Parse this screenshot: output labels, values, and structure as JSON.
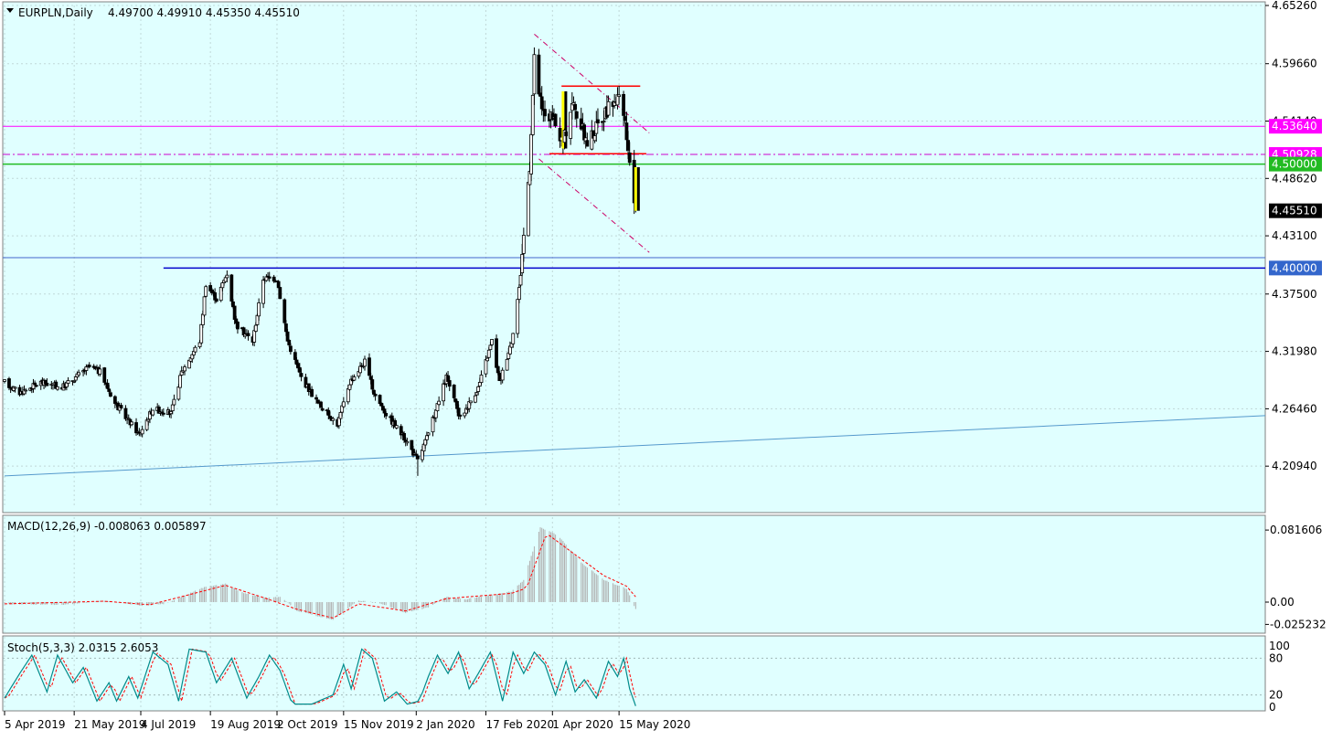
{
  "header": {
    "symbol_label": "EURPLN,Daily",
    "ohlc_label": "4.49700 4.49910 4.45350 4.45510"
  },
  "colors": {
    "background": "#E0FFFF",
    "bull_candle": "#FFFFFF",
    "bear_candle": "#000000",
    "highlight_candle": "#FFFF00",
    "resistance": "#FF0000",
    "support_green": "#22BB22",
    "support_blue": "#0000CC",
    "magenta": "#FF00FF",
    "trendline": "#5599CC",
    "channel": "#CC0066",
    "signal": "#FF0000",
    "stoch_main": "#008B8B"
  },
  "chart_data": {
    "type": "candlestick",
    "symbol": "EURPLN",
    "timeframe": "Daily",
    "last_bar": {
      "open": 4.497,
      "high": 4.4991,
      "low": 4.4535,
      "close": 4.4551
    },
    "ylim": [
      4.17,
      4.6526
    ],
    "y_ticks": [
      "4.65260",
      "4.59660",
      "4.54140",
      "4.48620",
      "4.43100",
      "4.37500",
      "4.31980",
      "4.26460",
      "4.20940"
    ],
    "x_labels": [
      "5 Apr 2019",
      "21 May 2019",
      "4 Jul 2019",
      "19 Aug 2019",
      "2 Oct 2019",
      "15 Nov 2019",
      "2 Jan 2020",
      "17 Feb 2020",
      "1 Apr 2020",
      "15 May 2020"
    ],
    "price_path_waypoints": [
      [
        "5 Apr 2019",
        4.29
      ],
      [
        "15 Apr 2019",
        4.28
      ],
      [
        "29 Apr 2019",
        4.29
      ],
      [
        "13 May 2019",
        4.285
      ],
      [
        "31 May 2019",
        4.305
      ],
      [
        "7 Jun 2019",
        4.3
      ],
      [
        "17 Jun 2019",
        4.27
      ],
      [
        "3 Jul 2019",
        4.24
      ],
      [
        "12 Jul 2019",
        4.265
      ],
      [
        "24 Jul 2019",
        4.26
      ],
      [
        "31 Jul 2019",
        4.3
      ],
      [
        "12 Aug 2019",
        4.33
      ],
      [
        "16 Aug 2019",
        4.385
      ],
      [
        "23 Aug 2019",
        4.37
      ],
      [
        "30 Aug 2019",
        4.395
      ],
      [
        "5 Sep 2019",
        4.345
      ],
      [
        "16 Sep 2019",
        4.33
      ],
      [
        "23 Sep 2019",
        4.39
      ],
      [
        "2 Oct 2019",
        4.39
      ],
      [
        "9 Oct 2019",
        4.33
      ],
      [
        "18 Oct 2019",
        4.295
      ],
      [
        "29 Oct 2019",
        4.27
      ],
      [
        "11 Nov 2019",
        4.25
      ],
      [
        "19 Nov 2019",
        4.29
      ],
      [
        "29 Nov 2019",
        4.31
      ],
      [
        "5 Dec 2019",
        4.28
      ],
      [
        "13 Dec 2019",
        4.26
      ],
      [
        "26 Dec 2019",
        4.235
      ],
      [
        "3 Jan 2020",
        4.215
      ],
      [
        "10 Jan 2020",
        4.24
      ],
      [
        "22 Jan 2020",
        4.295
      ],
      [
        "31 Jan 2020",
        4.255
      ],
      [
        "12 Feb 2020",
        4.285
      ],
      [
        "21 Feb 2020",
        4.33
      ],
      [
        "26 Feb 2020",
        4.29
      ],
      [
        "5 Mar 2020",
        4.33
      ],
      [
        "10 Mar 2020",
        4.38
      ],
      [
        "17 Mar 2020",
        4.5
      ],
      [
        "20 Mar 2020",
        4.6
      ],
      [
        "25 Mar 2020",
        4.55
      ],
      [
        "31 Mar 2020",
        4.545
      ],
      [
        "8 Apr 2020",
        4.52
      ],
      [
        "14 Apr 2020",
        4.56
      ],
      [
        "24 Apr 2020",
        4.52
      ],
      [
        "6 May 2020",
        4.55
      ],
      [
        "14 May 2020",
        4.565
      ],
      [
        "19 May 2020",
        4.54
      ],
      [
        "22 May 2020",
        4.495
      ],
      [
        "26 May 2020",
        4.4551
      ]
    ],
    "spike_low": {
      "date": "3 Jan 2020",
      "value": 4.2
    },
    "price_labels": [
      {
        "text": "4.53640",
        "value": 4.5364,
        "style": "magenta"
      },
      {
        "text": "4.50928",
        "value": 4.50928,
        "style": "magenta"
      },
      {
        "text": "4.50000",
        "value": 4.5,
        "style": "green"
      },
      {
        "text": "4.45510",
        "value": 4.4551,
        "style": "current"
      },
      {
        "text": "4.40000",
        "value": 4.4,
        "style": "blue"
      }
    ],
    "horizontal_lines": [
      {
        "name": "magenta-line",
        "value": 4.5364,
        "style": "solid",
        "color": "#FF00FF"
      },
      {
        "name": "magenta-dashdot-line",
        "value": 4.50928,
        "style": "dashdot",
        "color": "#CC00CC"
      },
      {
        "name": "green-line",
        "value": 4.5,
        "style": "solid",
        "color": "#22BB22"
      },
      {
        "name": "upper-blue-line",
        "value": 4.41,
        "style": "solid",
        "color": "#4466CC"
      },
      {
        "name": "blue-support-line",
        "value": 4.4,
        "style": "solid",
        "color": "#0000CC",
        "from": "19 Jul 2019"
      }
    ],
    "resistance_segments": [
      {
        "from": "7 Apr 2020",
        "to": "29 May 2020",
        "value": 4.575
      },
      {
        "from": "30 Mar 2020",
        "to": "2 Jun 2020",
        "value": 4.51
      }
    ],
    "trendline": {
      "from": [
        "5 Apr 2019",
        4.2
      ],
      "to": [
        "8 Jun 2020",
        4.258
      ]
    },
    "channel_lines": [
      {
        "from": [
          "20 Mar 2020",
          4.625
        ],
        "to": [
          "4 Jun 2020",
          4.53
        ]
      },
      {
        "from": [
          "23 Mar 2020",
          4.505
        ],
        "to": [
          "4 Jun 2020",
          4.415
        ]
      }
    ],
    "highlighted_candles": [
      {
        "date": "8 Apr 2020",
        "open": 4.515,
        "close": 4.57
      },
      {
        "date": "26 May 2020",
        "open": 4.497,
        "close": 4.4551
      }
    ]
  },
  "macd": {
    "label": "MACD(12,26,9) -0.008063 0.005897",
    "ylim": [
      -0.03,
      0.09
    ],
    "y_ticks": [
      "0.081606",
      "0.00",
      "-0.025232"
    ],
    "waypoints": [
      [
        "5 Apr 2019",
        -0.002
      ],
      [
        "15 May 2019",
        -0.003
      ],
      [
        "10 Jun 2019",
        0.002
      ],
      [
        "5 Jul 2019",
        -0.004
      ],
      [
        "20 Jul 2019",
        -0.002
      ],
      [
        "15 Aug 2019",
        0.017
      ],
      [
        "29 Aug 2019",
        0.021
      ],
      [
        "10 Sep 2019",
        0.01
      ],
      [
        "25 Sep 2019",
        0.005
      ],
      [
        "5 Oct 2019",
        0.006
      ],
      [
        "15 Oct 2019",
        -0.01
      ],
      [
        "8 Nov 2019",
        -0.02
      ],
      [
        "25 Nov 2019",
        0.002
      ],
      [
        "10 Dec 2019",
        -0.002
      ],
      [
        "26 Dec 2019",
        -0.012
      ],
      [
        "10 Jan 2020",
        -0.006
      ],
      [
        "22 Jan 2020",
        0.006
      ],
      [
        "3 Feb 2020",
        0.003
      ],
      [
        "20 Feb 2020",
        0.008
      ],
      [
        "5 Mar 2020",
        0.012
      ],
      [
        "13 Mar 2020",
        0.025
      ],
      [
        "24 Mar 2020",
        0.085
      ],
      [
        "5 Apr 2020",
        0.075
      ],
      [
        "20 Apr 2020",
        0.045
      ],
      [
        "5 May 2020",
        0.025
      ],
      [
        "20 May 2020",
        0.015
      ],
      [
        "26 May 2020",
        -0.008
      ]
    ],
    "signal_waypoints": [
      [
        "5 Apr 2019",
        -0.002
      ],
      [
        "10 Jun 2019",
        0.001
      ],
      [
        "10 Jul 2019",
        -0.003
      ],
      [
        "29 Aug 2019",
        0.019
      ],
      [
        "25 Sep 2019",
        0.004
      ],
      [
        "15 Oct 2019",
        -0.008
      ],
      [
        "8 Nov 2019",
        -0.018
      ],
      [
        "25 Nov 2019",
        -0.002
      ],
      [
        "26 Dec 2019",
        -0.01
      ],
      [
        "22 Jan 2020",
        0.004
      ],
      [
        "5 Mar 2020",
        0.01
      ],
      [
        "15 Mar 2020",
        0.016
      ],
      [
        "28 Mar 2020",
        0.078
      ],
      [
        "15 Apr 2020",
        0.055
      ],
      [
        "5 May 2020",
        0.03
      ],
      [
        "20 May 2020",
        0.018
      ],
      [
        "26 May 2020",
        0.006
      ]
    ]
  },
  "stoch": {
    "label": "Stoch(5,3,3) 2.0315 2.6053",
    "ylim": [
      0,
      100
    ],
    "y_ticks": [
      "100",
      "80",
      "20",
      "0"
    ],
    "waypoints": [
      [
        "5 Apr 2019",
        15
      ],
      [
        "15 Apr 2019",
        55
      ],
      [
        "23 Apr 2019",
        85
      ],
      [
        "3 May 2019",
        25
      ],
      [
        "10 May 2019",
        85
      ],
      [
        "20 May 2019",
        40
      ],
      [
        "27 May 2019",
        65
      ],
      [
        "5 Jun 2019",
        10
      ],
      [
        "13 Jun 2019",
        40
      ],
      [
        "18 Jun 2019",
        10
      ],
      [
        "26 Jun 2019",
        50
      ],
      [
        "2 Jul 2019",
        15
      ],
      [
        "12 Jul 2019",
        90
      ],
      [
        "22 Jul 2019",
        70
      ],
      [
        "29 Jul 2019",
        10
      ],
      [
        "5 Aug 2019",
        95
      ],
      [
        "16 Aug 2019",
        90
      ],
      [
        "23 Aug 2019",
        40
      ],
      [
        "2 Sep 2019",
        80
      ],
      [
        "12 Sep 2019",
        15
      ],
      [
        "20 Sep 2019",
        50
      ],
      [
        "27 Sep 2019",
        85
      ],
      [
        "4 Oct 2019",
        60
      ],
      [
        "12 Oct 2019",
        5
      ],
      [
        "25 Oct 2019",
        5
      ],
      [
        "8 Nov 2019",
        20
      ],
      [
        "15 Nov 2019",
        70
      ],
      [
        "20 Nov 2019",
        30
      ],
      [
        "27 Nov 2019",
        95
      ],
      [
        "4 Dec 2019",
        80
      ],
      [
        "12 Dec 2019",
        10
      ],
      [
        "20 Dec 2019",
        25
      ],
      [
        "27 Dec 2019",
        5
      ],
      [
        "4 Jan 2020",
        10
      ],
      [
        "10 Jan 2020",
        50
      ],
      [
        "16 Jan 2020",
        85
      ],
      [
        "23 Jan 2020",
        55
      ],
      [
        "30 Jan 2020",
        90
      ],
      [
        "6 Feb 2020",
        30
      ],
      [
        "12 Feb 2020",
        55
      ],
      [
        "20 Feb 2020",
        90
      ],
      [
        "28 Feb 2020",
        10
      ],
      [
        "6 Mar 2020",
        90
      ],
      [
        "13 Mar 2020",
        55
      ],
      [
        "20 Mar 2020",
        90
      ],
      [
        "27 Mar 2020",
        70
      ],
      [
        "3 Apr 2020",
        20
      ],
      [
        "10 Apr 2020",
        75
      ],
      [
        "16 Apr 2020",
        25
      ],
      [
        "22 Apr 2020",
        45
      ],
      [
        "30 Apr 2020",
        15
      ],
      [
        "8 May 2020",
        75
      ],
      [
        "14 May 2020",
        50
      ],
      [
        "18 May 2020",
        80
      ],
      [
        "22 May 2020",
        30
      ],
      [
        "26 May 2020",
        2
      ]
    ]
  }
}
